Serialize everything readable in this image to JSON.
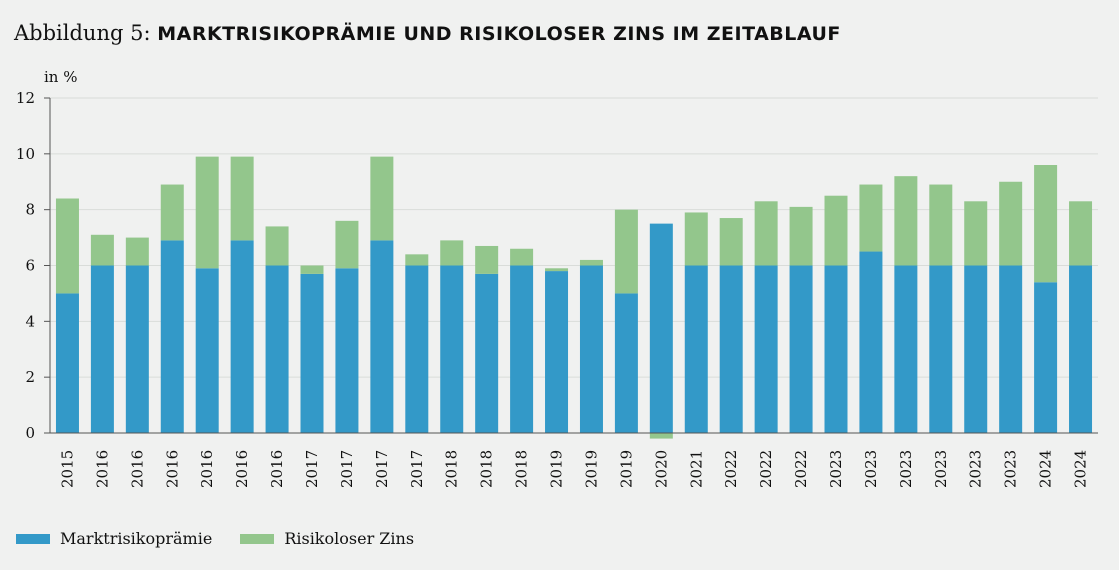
{
  "header": {
    "prefix": "Abbildung 5:",
    "title": "MARKTRISIKOPRÄMIE UND RISIKOLOSER ZINS IM ZEITABLAUF"
  },
  "colors": {
    "mrp": "#3399c8",
    "rf": "#93c68c",
    "axis": "#555555",
    "grid": "#d9dcd9"
  },
  "chart_data": {
    "type": "bar",
    "stacked": true,
    "unit_label": "in %",
    "ylim": [
      0,
      12
    ],
    "yticks": [
      0,
      2,
      4,
      6,
      8,
      10,
      12
    ],
    "categories": [
      "2015",
      "2016",
      "2016",
      "2016",
      "2016",
      "2016",
      "2016",
      "2017",
      "2017",
      "2017",
      "2017",
      "2018",
      "2018",
      "2018",
      "2019",
      "2019",
      "2019",
      "2020",
      "2021",
      "2022",
      "2022",
      "2022",
      "2023",
      "2023",
      "2023",
      "2023",
      "2023",
      "2023",
      "2024",
      "2024"
    ],
    "series": [
      {
        "name": "Marktrisikoprämie",
        "values": [
          5.0,
          6.0,
          6.0,
          6.9,
          5.9,
          6.9,
          6.0,
          5.7,
          5.9,
          6.9,
          6.0,
          6.0,
          5.7,
          6.0,
          5.8,
          6.0,
          5.0,
          7.5,
          6.0,
          6.0,
          6.0,
          6.0,
          6.0,
          6.5,
          6.0,
          6.0,
          6.0,
          6.0,
          5.4,
          6.0
        ]
      },
      {
        "name": "Risikoloser Zins",
        "values": [
          3.4,
          1.1,
          1.0,
          2.0,
          4.0,
          3.0,
          1.4,
          0.3,
          1.7,
          3.0,
          0.4,
          0.9,
          1.0,
          0.6,
          0.1,
          0.2,
          3.0,
          -0.2,
          1.9,
          1.7,
          2.3,
          2.1,
          2.5,
          2.4,
          3.2,
          2.9,
          2.3,
          3.0,
          4.2,
          2.3
        ]
      }
    ],
    "legend_position": "bottom-left"
  }
}
